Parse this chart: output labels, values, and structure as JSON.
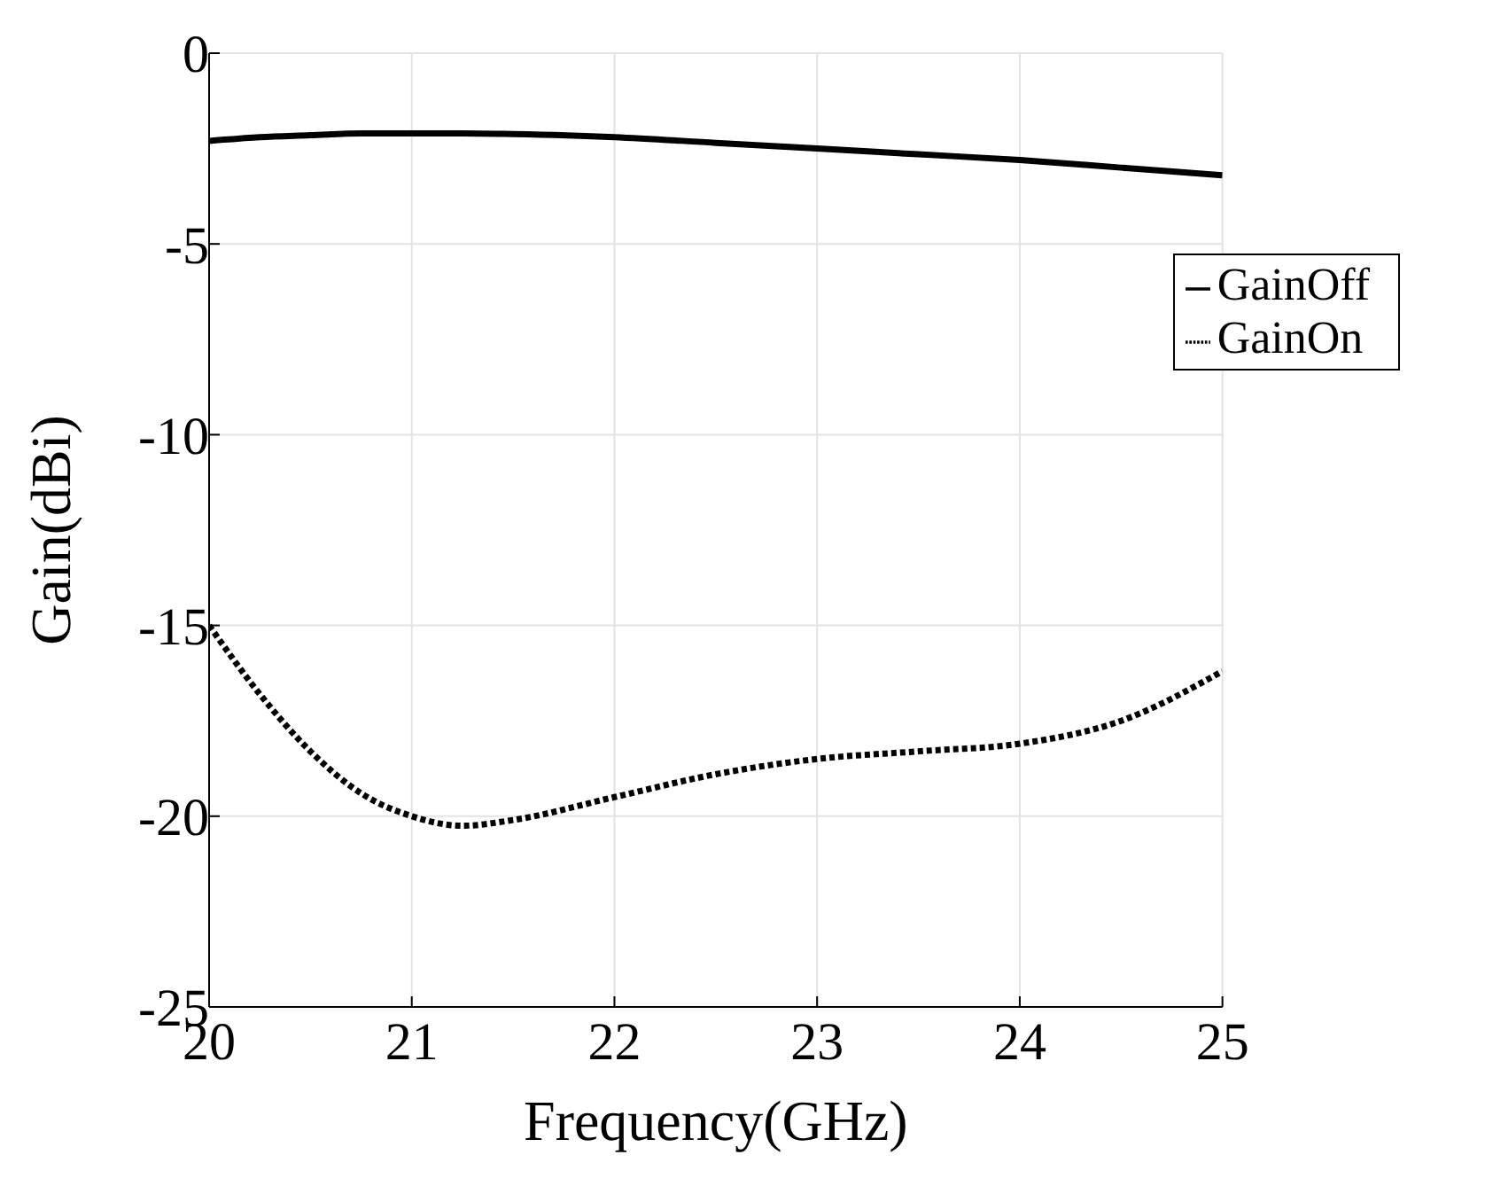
{
  "chart_data": {
    "type": "line",
    "xlabel": "Frequency(GHz)",
    "ylabel": "Gain(dBi)",
    "x": [
      20,
      20.25,
      20.5,
      20.75,
      21,
      21.25,
      21.5,
      22,
      22.5,
      23,
      23.5,
      24,
      24.5,
      25
    ],
    "series": [
      {
        "name": "GainOff",
        "color": "#000000",
        "line_style": "solid",
        "values": [
          -2.3,
          -2.2,
          -2.15,
          -2.1,
          -2.1,
          -2.1,
          -2.12,
          -2.2,
          -2.35,
          -2.5,
          -2.65,
          -2.8,
          -3.0,
          -3.2
        ]
      },
      {
        "name": "GainOn",
        "color": "#000000",
        "line_style": "dotted",
        "values": [
          -15.0,
          -16.8,
          -18.3,
          -19.4,
          -20.0,
          -20.25,
          -20.1,
          -19.5,
          -18.9,
          -18.5,
          -18.3,
          -18.1,
          -17.5,
          -16.2
        ]
      }
    ],
    "xlim": [
      20,
      25
    ],
    "xticks": [
      20,
      21,
      22,
      23,
      24,
      25
    ],
    "ylim": [
      -25,
      0
    ],
    "yticks": [
      -25,
      -20,
      -15,
      -10,
      -5,
      0
    ],
    "grid": true,
    "legend": "top right"
  }
}
